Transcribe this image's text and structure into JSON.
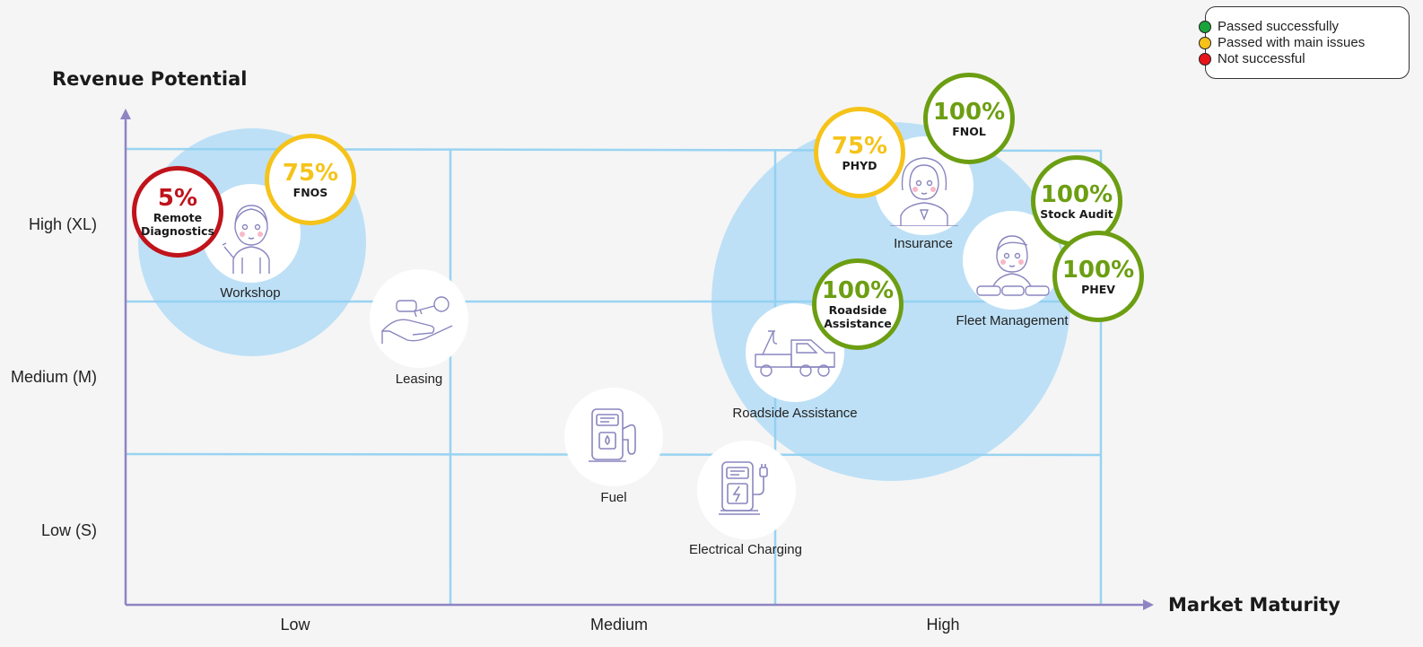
{
  "axes": {
    "y_title": "Revenue Potential",
    "x_title": "Market Maturity",
    "y_levels": [
      "High (XL)",
      "Medium (M)",
      "Low (S)"
    ],
    "x_levels": [
      "Low",
      "Medium",
      "High"
    ]
  },
  "legend": [
    {
      "label": "Passed successfully",
      "color": "#1aa33a"
    },
    {
      "label": "Passed with main issues",
      "color": "#f7c11a"
    },
    {
      "label": "Not successful",
      "color": "#e8141c"
    }
  ],
  "colors": {
    "grid": "#8fd0f2",
    "cluster": "#bde0f6",
    "axis": "#8e84c4",
    "badge_red": "#c0131b",
    "badge_yellow": "#f5c319",
    "badge_green": "#6c9e12"
  },
  "use_cases": [
    {
      "label": "Workshop",
      "icon": "mechanic-icon"
    },
    {
      "label": "Leasing",
      "icon": "hand-key-icon"
    },
    {
      "label": "Fuel",
      "icon": "fuel-pump-icon"
    },
    {
      "label": "Electrical Charging",
      "icon": "ev-charger-icon"
    },
    {
      "label": "Roadside Assistance",
      "icon": "tow-truck-icon"
    },
    {
      "label": "Insurance",
      "icon": "agent-icon"
    },
    {
      "label": "Fleet Management",
      "icon": "fleet-manager-icon"
    }
  ],
  "badges": [
    {
      "percent": "5%",
      "name_lines": [
        "Remote",
        "Diagnostics"
      ],
      "status": "red"
    },
    {
      "percent": "75%",
      "name_lines": [
        "FNOS"
      ],
      "status": "yellow"
    },
    {
      "percent": "75%",
      "name_lines": [
        "PHYD"
      ],
      "status": "yellow"
    },
    {
      "percent": "100%",
      "name_lines": [
        "FNOL"
      ],
      "status": "green"
    },
    {
      "percent": "100%",
      "name_lines": [
        "Stock Audit"
      ],
      "status": "green"
    },
    {
      "percent": "100%",
      "name_lines": [
        "PHEV"
      ],
      "status": "green"
    },
    {
      "percent": "100%",
      "name_lines": [
        "Roadside",
        "Assistance"
      ],
      "status": "green"
    }
  ]
}
